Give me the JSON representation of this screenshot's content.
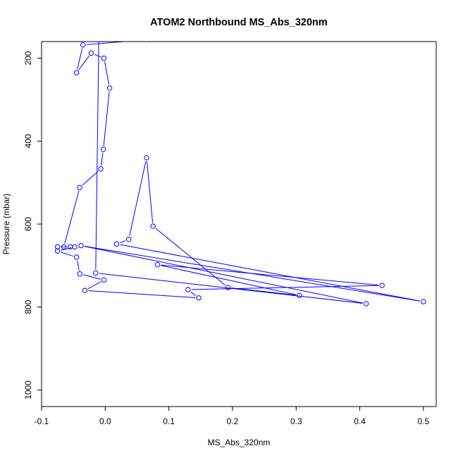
{
  "chart_data": {
    "type": "line",
    "title": "ATOM2 Northbound MS_Abs_320nm",
    "xlabel": "MS_Abs_320nm",
    "ylabel": "Pressure (mbar)",
    "xlim": [
      -0.1,
      0.52
    ],
    "ylim": [
      1040,
      160
    ],
    "y_reversed": true,
    "grid": false,
    "x_ticks": [
      -0.1,
      0.0,
      0.1,
      0.2,
      0.3,
      0.4,
      0.5
    ],
    "x_tick_labels": [
      "-0.1",
      "0.0",
      "0.1",
      "0.2",
      "0.3",
      "0.4",
      "0.5"
    ],
    "y_ticks": [
      200,
      400,
      600,
      800,
      1000
    ],
    "y_tick_labels": [
      "200",
      "400",
      "600",
      "800",
      "1000"
    ],
    "series_color": "#0000ff",
    "marker": "open-circle",
    "series": [
      {
        "x": [
          0.07,
          -0.035,
          -0.045,
          -0.022,
          -0.002,
          0.007,
          -0.003,
          -0.007,
          -0.04,
          -0.065,
          -0.075,
          -0.055,
          -0.048,
          -0.075,
          -0.045,
          -0.04,
          -0.002,
          -0.032,
          0.147,
          0.13,
          0.435,
          0.082,
          0.305,
          0.193,
          0.075,
          0.065,
          0.037,
          0.018,
          0.5,
          -0.038,
          0.41,
          -0.015,
          -0.01,
          0.13
        ],
        "y": [
          155,
          168,
          235,
          188,
          200,
          272,
          420,
          467,
          512,
          655,
          655,
          655,
          655,
          665,
          680,
          720,
          735,
          760,
          778,
          758,
          748,
          698,
          772,
          753,
          605,
          440,
          637,
          648,
          787,
          652,
          792,
          718,
          150,
          150
        ]
      }
    ]
  }
}
